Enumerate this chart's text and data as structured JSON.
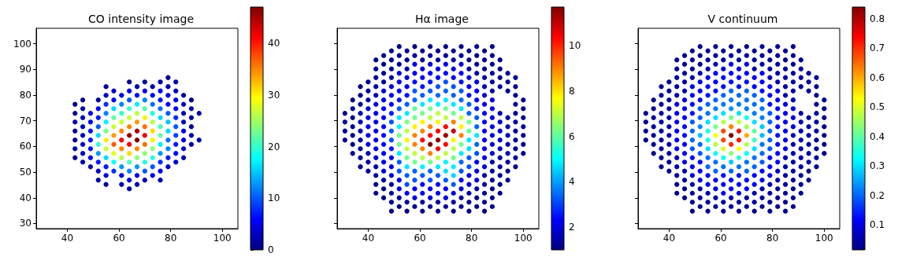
{
  "chart_data": [
    {
      "type": "scatter",
      "title": "CO intensity image",
      "marker": "circle",
      "xlim": [
        28,
        106
      ],
      "ylim": [
        28,
        106
      ],
      "xticks": [
        40,
        60,
        80,
        100
      ],
      "yticks": [
        30,
        40,
        50,
        60,
        70,
        80,
        90,
        100
      ],
      "clim": [
        0,
        47
      ],
      "cticks": [
        0,
        10,
        20,
        30,
        40
      ],
      "x": [
        43,
        43,
        43,
        43,
        43,
        43,
        43,
        46,
        46,
        46,
        46,
        46,
        46,
        46,
        46,
        49,
        49,
        49,
        49,
        49,
        49,
        49,
        52,
        52,
        52,
        52,
        52,
        52,
        52,
        52,
        52,
        52,
        55,
        55,
        55,
        55,
        55,
        55,
        55,
        55,
        55,
        55,
        55,
        55,
        58,
        58,
        58,
        58,
        58,
        58,
        58,
        58,
        58,
        58,
        61,
        61,
        61,
        61,
        61,
        61,
        61,
        61,
        61,
        61,
        61,
        64,
        64,
        64,
        64,
        64,
        64,
        64,
        64,
        64,
        64,
        64,
        64,
        64,
        67,
        67,
        67,
        67,
        67,
        67,
        67,
        67,
        67,
        67,
        67,
        67,
        70,
        70,
        70,
        70,
        70,
        70,
        70,
        70,
        70,
        70,
        70,
        70,
        73,
        73,
        73,
        73,
        73,
        73,
        73,
        73,
        73,
        73,
        73,
        76,
        76,
        76,
        76,
        76,
        76,
        76,
        76,
        76,
        76,
        76,
        76,
        79,
        79,
        79,
        79,
        79,
        79,
        79,
        79,
        79,
        79,
        79,
        82,
        82,
        82,
        82,
        82,
        82,
        82,
        82,
        82,
        82,
        85,
        85,
        85,
        85,
        85,
        85,
        85,
        85,
        88,
        88,
        88,
        88,
        88,
        88,
        91,
        91
      ],
      "values": [
        76.4,
        72.9,
        69.5,
        66.0,
        62.5,
        59.1,
        55.6,
        78.1,
        74.7,
        71.2,
        67.7,
        64.3,
        60.8,
        57.3,
        53.9,
        72.9,
        69.5,
        66.0,
        62.5,
        59.1,
        55.6,
        52.1,
        78.1,
        74.7,
        71.2,
        67.7,
        64.3,
        60.8,
        57.3,
        53.9,
        50.4,
        46.9,
        83.3,
        79.9,
        76.4,
        72.9,
        69.5,
        66.0,
        62.5,
        59.1,
        55.6,
        52.1,
        48.7,
        45.2,
        81.6,
        78.1,
        74.7,
        71.2,
        67.7,
        64.3,
        60.8,
        57.3,
        53.9,
        50.4,
        79.9,
        76.4,
        72.9,
        69.5,
        66.0,
        62.5,
        59.1,
        55.6,
        52.1,
        48.7,
        45.2,
        85.1,
        81.6,
        78.1,
        74.7,
        71.2,
        67.7,
        64.3,
        60.8,
        57.3,
        53.9,
        50.4,
        46.9,
        43.5,
        83.3,
        79.9,
        76.4,
        72.9,
        69.5,
        66.0,
        62.5,
        59.1,
        55.6,
        52.1,
        48.7,
        45.2,
        85.1,
        81.6,
        78.1,
        74.7,
        71.2,
        67.7,
        64.3,
        60.8,
        57.3,
        53.9,
        50.4,
        46.9,
        83.3,
        79.9,
        76.4,
        72.9,
        69.5,
        66.0,
        62.5,
        59.1,
        55.6,
        52.1,
        48.7,
        85.1,
        81.6,
        78.1,
        74.7,
        71.2,
        67.7,
        64.3,
        60.8,
        57.3,
        53.9,
        50.4,
        46.9,
        86.8,
        83.3,
        79.9,
        76.4,
        72.9,
        69.5,
        66.0,
        62.5,
        59.1,
        55.6,
        52.1,
        85.1,
        81.6,
        78.1,
        74.7,
        71.2,
        67.7,
        64.3,
        60.8,
        57.3,
        53.9,
        79.9,
        76.4,
        72.9,
        69.5,
        66.0,
        62.5,
        59.1,
        55.6,
        78.1,
        74.7,
        71.2,
        67.7,
        64.3,
        60.8,
        72.9,
        62.5
      ],
      "cvalues": [
        1,
        1,
        2,
        1,
        1,
        2,
        1,
        1,
        2,
        3,
        3,
        3,
        4,
        3,
        2,
        5,
        6,
        7,
        7,
        7,
        6,
        2,
        1,
        6,
        7,
        10,
        16,
        20,
        13,
        7,
        3,
        2,
        1,
        3,
        8,
        12,
        17,
        23,
        30,
        27,
        16,
        7,
        5,
        1,
        3,
        6,
        16,
        22,
        27,
        34,
        37,
        28,
        18,
        8,
        5,
        12,
        20,
        27,
        35,
        41,
        35,
        26,
        13,
        5,
        2,
        1,
        5,
        10,
        20,
        27,
        35,
        46,
        41,
        31,
        21,
        12,
        5,
        2,
        2,
        6,
        17,
        26,
        34,
        45,
        47,
        35,
        24,
        13,
        5,
        2,
        1,
        5,
        12,
        21,
        30,
        36,
        42,
        36,
        24,
        19,
        10,
        2,
        2,
        6,
        11,
        19,
        26,
        31,
        30,
        24,
        19,
        10,
        5,
        2,
        6,
        7,
        11,
        16,
        21,
        22,
        17,
        13,
        8,
        5,
        2,
        1,
        2,
        4,
        6,
        10,
        15,
        16,
        11,
        12,
        7,
        3,
        2,
        3,
        5,
        6,
        8,
        10,
        9,
        7,
        6,
        3,
        2,
        3,
        2,
        3,
        5,
        5,
        4,
        2,
        1,
        2,
        2,
        1,
        2,
        2,
        1,
        2
      ]
    },
    {
      "type": "scatter",
      "title": "Hα image",
      "marker": "circle",
      "tick_labels": "x",
      "xlim": [
        28,
        106
      ],
      "ylim": [
        28,
        106
      ],
      "xticks": [
        40,
        60,
        80,
        100
      ],
      "yticks": [
        {
          "value": 30,
          "label": null
        },
        {
          "value": 40,
          "label": null
        },
        {
          "value": 50,
          "label": null
        },
        {
          "value": 60,
          "label": null
        },
        {
          "value": 70,
          "label": null
        },
        {
          "value": 80,
          "label": null
        },
        {
          "value": 90,
          "label": null
        },
        {
          "value": 100,
          "label": null
        }
      ],
      "clim": [
        1.0,
        11.7
      ],
      "cticks": [
        2,
        4,
        6,
        8,
        10
      ],
      "x": [
        31,
        31,
        31,
        31,
        34,
        34,
        34,
        34,
        34,
        34,
        34,
        37,
        37,
        37,
        37,
        37,
        37,
        37,
        37,
        37,
        37,
        40,
        40,
        40,
        40,
        40,
        40,
        40,
        40,
        40,
        40,
        40,
        43,
        43,
        43,
        43,
        43,
        43,
        43,
        43,
        43,
        43,
        43,
        43,
        43,
        43,
        43,
        43,
        46,
        46,
        46,
        46,
        46,
        46,
        46,
        46,
        46,
        46,
        46,
        46,
        46,
        46,
        46,
        46,
        46,
        49,
        49,
        49,
        49,
        49,
        49,
        49,
        49,
        49,
        49,
        49,
        49,
        49,
        49,
        49,
        49,
        49,
        49,
        49,
        52,
        52,
        52,
        52,
        52,
        52,
        52,
        52,
        52,
        52,
        52,
        52,
        52,
        52,
        52,
        52,
        52,
        52,
        52,
        55,
        55,
        55,
        55,
        55,
        55,
        55,
        55,
        55,
        55,
        55,
        55,
        55,
        55,
        55,
        55,
        55,
        55,
        55,
        58,
        58,
        58,
        58,
        58,
        58,
        58,
        58,
        58,
        58,
        58,
        58,
        58,
        58,
        58,
        58,
        58,
        58,
        58,
        61,
        61,
        61,
        61,
        61,
        61,
        61,
        61,
        61,
        61,
        61,
        61,
        61,
        61,
        61,
        61,
        61,
        61,
        61,
        64,
        64,
        64,
        64,
        64,
        64,
        64,
        64,
        64,
        64,
        64,
        64,
        64,
        64,
        64,
        64,
        64,
        64,
        64,
        67,
        67,
        67,
        67,
        67,
        67,
        67,
        67,
        67,
        67,
        67,
        67,
        67,
        67,
        67,
        67,
        67,
        67,
        67,
        70,
        70,
        70,
        70,
        70,
        70,
        70,
        70,
        70,
        70,
        70,
        70,
        70,
        70,
        70,
        70,
        70,
        70,
        70,
        73,
        73,
        73,
        73,
        73,
        73,
        73,
        73,
        73,
        73,
        73,
        73,
        73,
        73,
        73,
        73,
        73,
        73,
        73,
        76,
        76,
        76,
        76,
        76,
        76,
        76,
        76,
        76,
        76,
        76,
        76,
        76,
        76,
        76,
        76,
        76,
        76,
        76,
        79,
        79,
        79,
        79,
        79,
        79,
        79,
        79,
        79,
        79,
        79,
        79,
        79,
        79,
        79,
        79,
        79,
        79,
        79,
        82,
        82,
        82,
        82,
        82,
        82,
        82,
        82,
        82,
        82,
        82,
        82,
        82,
        82,
        82,
        82,
        82,
        82,
        82,
        85,
        85,
        85,
        85,
        85,
        85,
        85,
        85,
        85,
        85,
        85,
        85,
        85,
        85,
        85,
        85,
        85,
        85,
        85,
        88,
        88,
        88,
        88,
        88,
        88,
        88,
        88,
        88,
        88,
        88,
        88,
        88,
        88,
        88,
        88,
        88,
        88,
        88,
        91,
        91,
        91,
        91,
        91,
        91,
        91,
        91,
        91,
        91,
        91,
        91,
        91,
        91,
        94,
        94,
        94,
        94,
        94,
        94,
        94,
        94,
        94,
        94,
        94,
        97,
        97,
        97,
        97,
        97,
        97,
        97,
        97,
        97,
        97,
        97,
        100,
        100,
        100,
        100,
        100,
        100,
        100
      ],
      "values": [
        72.9,
        69.5,
        66.0,
        62.5,
        78.1,
        74.7,
        71.2,
        67.7,
        64.3,
        60.8,
        57.3,
        83.3,
        79.9,
        76.4,
        72.9,
        69.5,
        66.0,
        62.5,
        59.1,
        55.6,
        52.1,
        85.1,
        81.6,
        78.1,
        74.7,
        71.2,
        67.7,
        64.3,
        60.8,
        57.3,
        53.9,
        50.4,
        93.7,
        90.2,
        86.8,
        83.3,
        79.9,
        76.4,
        72.9,
        69.5,
        66.0,
        62.5,
        59.1,
        55.6,
        52.1,
        48.7,
        45.2,
        41.8,
        95.4,
        92.0,
        88.5,
        85.1,
        81.6,
        78.1,
        74.7,
        71.2,
        67.7,
        64.3,
        60.8,
        57.3,
        53.9,
        50.4,
        46.9,
        43.5,
        40.0,
        97.2,
        93.7,
        90.2,
        86.8,
        83.3,
        79.9,
        76.4,
        72.9,
        69.5,
        66.0,
        62.5,
        59.1,
        55.6,
        52.1,
        48.7,
        45.2,
        41.8,
        38.3,
        34.8,
        98.9,
        95.4,
        92.0,
        88.5,
        85.1,
        81.6,
        78.1,
        74.7,
        71.2,
        67.7,
        64.3,
        60.8,
        57.3,
        53.9,
        50.4,
        46.9,
        43.5,
        40.0,
        36.6,
        97.2,
        93.7,
        90.2,
        86.8,
        83.3,
        79.9,
        76.4,
        72.9,
        69.5,
        66.0,
        62.5,
        59.1,
        55.6,
        52.1,
        48.7,
        45.2,
        41.8,
        38.3,
        34.8,
        98.9,
        95.4,
        92.0,
        88.5,
        85.1,
        81.6,
        78.1,
        74.7,
        71.2,
        67.7,
        64.3,
        60.8,
        57.3,
        53.9,
        50.4,
        46.9,
        43.5,
        40.0,
        36.6,
        97.2,
        93.7,
        90.2,
        86.8,
        83.3,
        79.9,
        76.4,
        72.9,
        69.5,
        66.0,
        62.5,
        59.1,
        55.6,
        52.1,
        48.7,
        45.2,
        41.8,
        38.3,
        34.8,
        98.9,
        95.4,
        92.0,
        88.5,
        85.1,
        81.6,
        78.1,
        74.7,
        71.2,
        67.7,
        64.3,
        60.8,
        57.3,
        53.9,
        50.4,
        46.9,
        43.5,
        40.0,
        36.6,
        97.2,
        93.7,
        90.2,
        86.8,
        83.3,
        79.9,
        76.4,
        72.9,
        69.5,
        66.0,
        62.5,
        59.1,
        55.6,
        52.1,
        48.7,
        45.2,
        41.8,
        38.3,
        34.8,
        98.9,
        95.4,
        92.0,
        88.5,
        85.1,
        81.6,
        78.1,
        74.7,
        71.2,
        67.7,
        64.3,
        60.8,
        57.3,
        53.9,
        50.4,
        46.9,
        43.5,
        40.0,
        36.6,
        97.2,
        93.7,
        90.2,
        86.8,
        83.3,
        79.9,
        76.4,
        72.9,
        69.5,
        66.0,
        62.5,
        59.1,
        55.6,
        52.1,
        48.7,
        45.2,
        41.8,
        38.3,
        34.8,
        98.9,
        95.4,
        92.0,
        88.5,
        85.1,
        81.6,
        78.1,
        74.7,
        71.2,
        67.7,
        64.3,
        60.8,
        57.3,
        53.9,
        50.4,
        46.9,
        43.5,
        40.0,
        36.6,
        97.2,
        93.7,
        90.2,
        86.8,
        83.3,
        79.9,
        76.4,
        72.9,
        69.5,
        66.0,
        62.5,
        59.1,
        55.6,
        52.1,
        48.7,
        45.2,
        41.8,
        38.3,
        34.8,
        98.9,
        95.4,
        92.0,
        88.5,
        85.1,
        81.6,
        78.1,
        74.7,
        71.2,
        67.7,
        64.3,
        60.8,
        57.3,
        53.9,
        50.4,
        46.9,
        43.5,
        40.0,
        36.6,
        97.2,
        93.7,
        90.2,
        86.8,
        83.3,
        79.9,
        76.4,
        72.9,
        69.5,
        66.0,
        62.5,
        59.1,
        55.6,
        52.1,
        48.7,
        45.2,
        41.8,
        38.3,
        34.8,
        98.9,
        95.4,
        92.0,
        88.5,
        85.1,
        81.6,
        78.1,
        74.7,
        71.2,
        67.7,
        64.3,
        60.8,
        57.3,
        53.9,
        50.4,
        46.9,
        43.5,
        40.0,
        36.6,
        93.7,
        90.2,
        86.8,
        83.3,
        72.9,
        69.5,
        66.0,
        62.5,
        59.1,
        55.6,
        52.1,
        48.7,
        45.2,
        41.8,
        88.5,
        85.1,
        81.6,
        71.2,
        67.7,
        64.3,
        60.8,
        57.3,
        53.9,
        50.4,
        46.9,
        86.8,
        83.3,
        79.9,
        76.4,
        72.9,
        69.5,
        66.0,
        62.5,
        59.1,
        55.6,
        52.1,
        78.1,
        74.7,
        71.2,
        67.7,
        64.3,
        60.8,
        57.3
      ],
      "cvalues": [
        1.1,
        1.2,
        1.2,
        1.1,
        1.1,
        1.2,
        1.2,
        1.3,
        1.2,
        1.2,
        1.1,
        1.1,
        1.2,
        1.3,
        1.4,
        1.6,
        1.6,
        1.4,
        1.3,
        1.2,
        1.1,
        1.2,
        1.3,
        1.4,
        2.0,
        2.1,
        2.2,
        2.1,
        2.0,
        1.4,
        1.3,
        1.2,
        1.1,
        1.2,
        1.3,
        1.4,
        1.5,
        2.0,
        2.1,
        2.2,
        2.2,
        2.2,
        2.1,
        2.0,
        1.5,
        1.4,
        1.2,
        1.1,
        1.1,
        1.2,
        1.3,
        1.4,
        2.0,
        2.2,
        2.3,
        2.4,
        2.5,
        2.5,
        2.4,
        2.3,
        2.2,
        2.0,
        1.4,
        1.2,
        1.1,
        1.1,
        1.2,
        1.3,
        1.4,
        2.0,
        2.2,
        2.4,
        2.6,
        3.2,
        3.3,
        3.2,
        2.6,
        2.4,
        2.2,
        2.0,
        1.4,
        1.3,
        1.2,
        1.1,
        1.1,
        1.2,
        1.3,
        2.0,
        2.2,
        2.4,
        2.6,
        3.3,
        4.8,
        4.9,
        6.2,
        6.2,
        4.8,
        3.3,
        3.2,
        2.2,
        2.0,
        1.3,
        1.1,
        1.1,
        1.2,
        1.4,
        2.1,
        2.3,
        2.5,
        3.3,
        4.8,
        6.3,
        7.0,
        7.8,
        7.0,
        6.2,
        4.8,
        3.3,
        3.2,
        2.2,
        1.3,
        1.1,
        1.1,
        1.3,
        2.0,
        2.2,
        2.5,
        3.3,
        3.4,
        6.0,
        6.2,
        7.8,
        9.0,
        9.0,
        7.0,
        6.2,
        3.4,
        3.2,
        2.2,
        2.0,
        1.2,
        1.1,
        1.3,
        2.0,
        2.3,
        2.6,
        3.3,
        4.8,
        6.2,
        7.8,
        9.0,
        10.3,
        9.0,
        7.0,
        4.9,
        3.3,
        2.4,
        2.1,
        1.3,
        1.1,
        1.1,
        1.3,
        2.0,
        2.3,
        2.6,
        3.3,
        4.8,
        6.2,
        7.0,
        9.0,
        10.3,
        11.7,
        9.0,
        6.2,
        3.4,
        3.2,
        2.2,
        2.0,
        1.2,
        1.1,
        1.3,
        2.1,
        2.4,
        3.2,
        3.4,
        4.9,
        7.0,
        7.8,
        10.3,
        11.5,
        10.3,
        7.0,
        4.8,
        3.3,
        2.4,
        2.1,
        1.3,
        1.1,
        1.2,
        1.3,
        2.1,
        2.4,
        3.2,
        3.4,
        4.8,
        6.2,
        7.0,
        10.3,
        11.4,
        10.3,
        7.0,
        4.9,
        4.7,
        3.3,
        2.3,
        2.0,
        1.2,
        1.1,
        1.3,
        2.0,
        2.3,
        3.2,
        3.3,
        4.8,
        6.2,
        9.0,
        11.0,
        7.8,
        7.0,
        6.2,
        4.8,
        4.6,
        3.3,
        2.1,
        1.3,
        1.1,
        1.2,
        1.3,
        2.0,
        2.3,
        2.5,
        3.3,
        3.4,
        4.8,
        7.0,
        7.8,
        9.0,
        6.2,
        4.8,
        3.4,
        3.2,
        2.3,
        2.0,
        1.3,
        1.2,
        1.1,
        1.2,
        1.4,
        2.1,
        2.3,
        2.5,
        3.3,
        3.4,
        6.2,
        6.1,
        4.8,
        4.7,
        3.3,
        3.2,
        2.2,
        2.0,
        1.4,
        1.2,
        1.1,
        1.1,
        1.2,
        1.3,
        1.4,
        2.1,
        2.3,
        2.4,
        2.6,
        3.3,
        3.4,
        4.8,
        3.4,
        3.2,
        2.4,
        2.2,
        2.0,
        1.3,
        1.2,
        1.1,
        1.1,
        1.2,
        1.3,
        1.4,
        1.5,
        2.0,
        2.2,
        2.3,
        2.4,
        2.4,
        2.3,
        2.2,
        2.1,
        2.0,
        1.5,
        1.4,
        1.3,
        1.2,
        1.1,
        1.1,
        1.2,
        1.3,
        1.4,
        1.4,
        1.5,
        2.0,
        2.1,
        2.2,
        2.2,
        2.1,
        2.0,
        1.9,
        1.5,
        1.4,
        1.3,
        1.2,
        1.2,
        1.1,
        1.1,
        1.2,
        1.3,
        1.4,
        1.5,
        1.9,
        2.0,
        2.0,
        1.9,
        1.5,
        1.4,
        1.3,
        1.2,
        1.1,
        1.1,
        1.2,
        1.3,
        1.4,
        1.4,
        1.5,
        1.4,
        1.4,
        1.3,
        1.2,
        1.1,
        1.1,
        1.2,
        1.2,
        1.3,
        1.3,
        1.3,
        1.3,
        1.3,
        1.2,
        1.2,
        1.1,
        1.1,
        1.1,
        1.2,
        1.2,
        1.2,
        1.1,
        1.1
      ]
    },
    {
      "type": "scatter",
      "title": "V continuum",
      "marker": "circle",
      "tick_labels": "x",
      "xlim": [
        28,
        106
      ],
      "ylim": [
        28,
        106
      ],
      "xticks": [
        40,
        60,
        80,
        100
      ],
      "yticks": [
        {
          "value": 30,
          "label": null
        },
        {
          "value": 40,
          "label": null
        },
        {
          "value": 50,
          "label": null
        },
        {
          "value": 60,
          "label": null
        },
        {
          "value": 70,
          "label": null
        },
        {
          "value": 80,
          "label": null
        },
        {
          "value": 90,
          "label": null
        },
        {
          "value": 100,
          "label": null
        }
      ],
      "clim": [
        0.015,
        0.84
      ],
      "cticks": [
        0.1,
        0.2,
        0.3,
        0.4,
        0.5,
        0.6,
        0.7,
        0.8
      ],
      "x": [
        31,
        31,
        31,
        31,
        34,
        34,
        34,
        34,
        34,
        34,
        34,
        37,
        37,
        37,
        37,
        37,
        37,
        37,
        37,
        37,
        37,
        40,
        40,
        40,
        40,
        40,
        40,
        40,
        40,
        40,
        40,
        40,
        43,
        43,
        43,
        43,
        43,
        43,
        43,
        43,
        43,
        43,
        43,
        43,
        43,
        43,
        43,
        43,
        46,
        46,
        46,
        46,
        46,
        46,
        46,
        46,
        46,
        46,
        46,
        46,
        46,
        46,
        46,
        46,
        46,
        49,
        49,
        49,
        49,
        49,
        49,
        49,
        49,
        49,
        49,
        49,
        49,
        49,
        49,
        49,
        49,
        49,
        49,
        49,
        52,
        52,
        52,
        52,
        52,
        52,
        52,
        52,
        52,
        52,
        52,
        52,
        52,
        52,
        52,
        52,
        52,
        52,
        52,
        55,
        55,
        55,
        55,
        55,
        55,
        55,
        55,
        55,
        55,
        55,
        55,
        55,
        55,
        55,
        55,
        55,
        55,
        55,
        58,
        58,
        58,
        58,
        58,
        58,
        58,
        58,
        58,
        58,
        58,
        58,
        58,
        58,
        58,
        58,
        58,
        58,
        58,
        61,
        61,
        61,
        61,
        61,
        61,
        61,
        61,
        61,
        61,
        61,
        61,
        61,
        61,
        61,
        61,
        61,
        61,
        61,
        64,
        64,
        64,
        64,
        64,
        64,
        64,
        64,
        64,
        64,
        64,
        64,
        64,
        64,
        64,
        64,
        64,
        64,
        64,
        67,
        67,
        67,
        67,
        67,
        67,
        67,
        67,
        67,
        67,
        67,
        67,
        67,
        67,
        67,
        67,
        67,
        67,
        67,
        70,
        70,
        70,
        70,
        70,
        70,
        70,
        70,
        70,
        70,
        70,
        70,
        70,
        70,
        70,
        70,
        70,
        70,
        70,
        73,
        73,
        73,
        73,
        73,
        73,
        73,
        73,
        73,
        73,
        73,
        73,
        73,
        73,
        73,
        73,
        73,
        73,
        73,
        76,
        76,
        76,
        76,
        76,
        76,
        76,
        76,
        76,
        76,
        76,
        76,
        76,
        76,
        76,
        76,
        76,
        76,
        76,
        79,
        79,
        79,
        79,
        79,
        79,
        79,
        79,
        79,
        79,
        79,
        79,
        79,
        79,
        79,
        79,
        79,
        79,
        79,
        82,
        82,
        82,
        82,
        82,
        82,
        82,
        82,
        82,
        82,
        82,
        82,
        82,
        82,
        82,
        82,
        82,
        82,
        82,
        85,
        85,
        85,
        85,
        85,
        85,
        85,
        85,
        85,
        85,
        85,
        85,
        85,
        85,
        85,
        85,
        85,
        85,
        85,
        88,
        88,
        88,
        88,
        88,
        88,
        88,
        88,
        88,
        88,
        88,
        88,
        88,
        88,
        88,
        88,
        88,
        88,
        88,
        91,
        91,
        91,
        91,
        91,
        91,
        91,
        91,
        91,
        91,
        91,
        91,
        91,
        91,
        94,
        94,
        94,
        94,
        94,
        94,
        94,
        94,
        94,
        94,
        94,
        97,
        97,
        97,
        97,
        97,
        97,
        97,
        97,
        97,
        97,
        97,
        100,
        100,
        100,
        100,
        100,
        100,
        100
      ],
      "values": [
        72.9,
        69.5,
        66.0,
        62.5,
        78.1,
        74.7,
        71.2,
        67.7,
        64.3,
        60.8,
        57.3,
        83.3,
        79.9,
        76.4,
        72.9,
        69.5,
        66.0,
        62.5,
        59.1,
        55.6,
        52.1,
        85.1,
        81.6,
        78.1,
        74.7,
        71.2,
        67.7,
        64.3,
        60.8,
        57.3,
        53.9,
        50.4,
        93.7,
        90.2,
        86.8,
        83.3,
        79.9,
        76.4,
        72.9,
        69.5,
        66.0,
        62.5,
        59.1,
        55.6,
        52.1,
        48.7,
        45.2,
        41.8,
        95.4,
        92.0,
        88.5,
        85.1,
        81.6,
        78.1,
        74.7,
        71.2,
        67.7,
        64.3,
        60.8,
        57.3,
        53.9,
        50.4,
        46.9,
        43.5,
        40.0,
        97.2,
        93.7,
        90.2,
        86.8,
        83.3,
        79.9,
        76.4,
        72.9,
        69.5,
        66.0,
        62.5,
        59.1,
        55.6,
        52.1,
        48.7,
        45.2,
        41.8,
        38.3,
        34.8,
        98.9,
        95.4,
        92.0,
        88.5,
        85.1,
        81.6,
        78.1,
        74.7,
        71.2,
        67.7,
        64.3,
        60.8,
        57.3,
        53.9,
        50.4,
        46.9,
        43.5,
        40.0,
        36.6,
        97.2,
        93.7,
        90.2,
        86.8,
        83.3,
        79.9,
        76.4,
        72.9,
        69.5,
        66.0,
        62.5,
        59.1,
        55.6,
        52.1,
        48.7,
        45.2,
        41.8,
        38.3,
        34.8,
        98.9,
        95.4,
        92.0,
        88.5,
        85.1,
        81.6,
        78.1,
        74.7,
        71.2,
        67.7,
        64.3,
        60.8,
        57.3,
        53.9,
        50.4,
        46.9,
        43.5,
        40.0,
        36.6,
        97.2,
        93.7,
        90.2,
        86.8,
        83.3,
        79.9,
        76.4,
        72.9,
        69.5,
        66.0,
        62.5,
        59.1,
        55.6,
        52.1,
        48.7,
        45.2,
        41.8,
        38.3,
        34.8,
        98.9,
        95.4,
        92.0,
        88.5,
        85.1,
        81.6,
        78.1,
        74.7,
        71.2,
        67.7,
        64.3,
        60.8,
        57.3,
        53.9,
        50.4,
        46.9,
        43.5,
        40.0,
        36.6,
        97.2,
        93.7,
        90.2,
        86.8,
        83.3,
        79.9,
        76.4,
        72.9,
        69.5,
        66.0,
        62.5,
        59.1,
        55.6,
        52.1,
        48.7,
        45.2,
        41.8,
        38.3,
        34.8,
        98.9,
        95.4,
        92.0,
        88.5,
        85.1,
        81.6,
        78.1,
        74.7,
        71.2,
        67.7,
        64.3,
        60.8,
        57.3,
        53.9,
        50.4,
        46.9,
        43.5,
        40.0,
        36.6,
        97.2,
        93.7,
        90.2,
        86.8,
        83.3,
        79.9,
        76.4,
        72.9,
        69.5,
        66.0,
        62.5,
        59.1,
        55.6,
        52.1,
        48.7,
        45.2,
        41.8,
        38.3,
        34.8,
        98.9,
        95.4,
        92.0,
        88.5,
        85.1,
        81.6,
        78.1,
        74.7,
        71.2,
        67.7,
        64.3,
        60.8,
        57.3,
        53.9,
        50.4,
        46.9,
        43.5,
        40.0,
        36.6,
        97.2,
        93.7,
        90.2,
        86.8,
        83.3,
        79.9,
        76.4,
        72.9,
        69.5,
        66.0,
        62.5,
        59.1,
        55.6,
        52.1,
        48.7,
        45.2,
        41.8,
        38.3,
        34.8,
        98.9,
        95.4,
        92.0,
        88.5,
        85.1,
        81.6,
        78.1,
        74.7,
        71.2,
        67.7,
        64.3,
        60.8,
        57.3,
        53.9,
        50.4,
        46.9,
        43.5,
        40.0,
        36.6,
        97.2,
        93.7,
        90.2,
        86.8,
        83.3,
        79.9,
        76.4,
        72.9,
        69.5,
        66.0,
        62.5,
        59.1,
        55.6,
        52.1,
        48.7,
        45.2,
        41.8,
        38.3,
        34.8,
        98.9,
        95.4,
        92.0,
        88.5,
        85.1,
        81.6,
        78.1,
        74.7,
        71.2,
        67.7,
        64.3,
        60.8,
        57.3,
        53.9,
        50.4,
        46.9,
        43.5,
        40.0,
        36.6,
        93.7,
        90.2,
        86.8,
        83.3,
        72.9,
        69.5,
        66.0,
        62.5,
        59.1,
        55.6,
        52.1,
        48.7,
        45.2,
        41.8,
        88.5,
        85.1,
        81.6,
        71.2,
        67.7,
        64.3,
        60.8,
        57.3,
        53.9,
        50.4,
        46.9,
        86.8,
        83.3,
        79.9,
        76.4,
        72.9,
        69.5,
        66.0,
        62.5,
        59.1,
        55.6,
        52.1,
        78.1,
        74.7,
        71.2,
        67.7,
        64.3,
        60.8,
        57.3
      ],
      "cvalues": [
        0.03,
        0.03,
        0.03,
        0.03,
        0.03,
        0.03,
        0.04,
        0.04,
        0.04,
        0.03,
        0.03,
        0.03,
        0.03,
        0.04,
        0.04,
        0.05,
        0.05,
        0.04,
        0.04,
        0.03,
        0.03,
        0.03,
        0.03,
        0.04,
        0.05,
        0.06,
        0.06,
        0.06,
        0.05,
        0.04,
        0.03,
        0.03,
        0.03,
        0.03,
        0.04,
        0.04,
        0.05,
        0.1,
        0.11,
        0.11,
        0.11,
        0.11,
        0.1,
        0.06,
        0.05,
        0.04,
        0.03,
        0.03,
        0.03,
        0.03,
        0.04,
        0.04,
        0.06,
        0.1,
        0.11,
        0.12,
        0.13,
        0.13,
        0.12,
        0.11,
        0.1,
        0.06,
        0.04,
        0.03,
        0.03,
        0.03,
        0.03,
        0.04,
        0.05,
        0.1,
        0.11,
        0.12,
        0.13,
        0.19,
        0.2,
        0.2,
        0.19,
        0.13,
        0.11,
        0.1,
        0.05,
        0.04,
        0.03,
        0.03,
        0.03,
        0.03,
        0.04,
        0.06,
        0.1,
        0.12,
        0.13,
        0.19,
        0.2,
        0.23,
        0.27,
        0.2,
        0.19,
        0.13,
        0.12,
        0.1,
        0.05,
        0.04,
        0.03,
        0.03,
        0.04,
        0.05,
        0.1,
        0.12,
        0.13,
        0.2,
        0.21,
        0.3,
        0.35,
        0.35,
        0.3,
        0.21,
        0.2,
        0.12,
        0.11,
        0.05,
        0.04,
        0.03,
        0.03,
        0.04,
        0.06,
        0.11,
        0.12,
        0.13,
        0.2,
        0.22,
        0.3,
        0.42,
        0.53,
        0.47,
        0.34,
        0.21,
        0.2,
        0.12,
        0.1,
        0.04,
        0.03,
        0.03,
        0.04,
        0.1,
        0.12,
        0.13,
        0.2,
        0.22,
        0.3,
        0.47,
        0.68,
        0.68,
        0.5,
        0.34,
        0.21,
        0.13,
        0.12,
        0.1,
        0.04,
        0.03,
        0.03,
        0.04,
        0.1,
        0.12,
        0.13,
        0.2,
        0.22,
        0.24,
        0.42,
        0.63,
        0.84,
        0.7,
        0.44,
        0.28,
        0.2,
        0.12,
        0.11,
        0.05,
        0.03,
        0.03,
        0.04,
        0.1,
        0.12,
        0.13,
        0.2,
        0.22,
        0.3,
        0.48,
        0.72,
        0.72,
        0.53,
        0.35,
        0.21,
        0.13,
        0.12,
        0.1,
        0.04,
        0.03,
        0.03,
        0.04,
        0.1,
        0.12,
        0.13,
        0.2,
        0.21,
        0.22,
        0.34,
        0.46,
        0.6,
        0.47,
        0.33,
        0.21,
        0.2,
        0.12,
        0.11,
        0.04,
        0.03,
        0.03,
        0.04,
        0.05,
        0.11,
        0.12,
        0.2,
        0.21,
        0.22,
        0.3,
        0.4,
        0.38,
        0.3,
        0.21,
        0.2,
        0.12,
        0.11,
        0.05,
        0.04,
        0.03,
        0.03,
        0.04,
        0.05,
        0.11,
        0.12,
        0.13,
        0.2,
        0.21,
        0.22,
        0.28,
        0.27,
        0.21,
        0.2,
        0.19,
        0.12,
        0.11,
        0.05,
        0.04,
        0.03,
        0.03,
        0.04,
        0.05,
        0.06,
        0.11,
        0.12,
        0.13,
        0.19,
        0.2,
        0.2,
        0.2,
        0.19,
        0.13,
        0.12,
        0.11,
        0.06,
        0.04,
        0.03,
        0.03,
        0.03,
        0.04,
        0.05,
        0.05,
        0.06,
        0.1,
        0.11,
        0.12,
        0.12,
        0.13,
        0.13,
        0.12,
        0.11,
        0.11,
        0.06,
        0.05,
        0.04,
        0.03,
        0.03,
        0.03,
        0.03,
        0.04,
        0.05,
        0.05,
        0.06,
        0.1,
        0.11,
        0.11,
        0.11,
        0.11,
        0.1,
        0.06,
        0.05,
        0.05,
        0.04,
        0.04,
        0.03,
        0.03,
        0.03,
        0.03,
        0.04,
        0.04,
        0.05,
        0.05,
        0.06,
        0.1,
        0.1,
        0.1,
        0.06,
        0.06,
        0.05,
        0.05,
        0.04,
        0.04,
        0.03,
        0.03,
        0.03,
        0.03,
        0.03,
        0.04,
        0.04,
        0.05,
        0.06,
        0.06,
        0.06,
        0.05,
        0.05,
        0.04,
        0.04,
        0.03,
        0.03,
        0.03,
        0.03,
        0.04,
        0.04,
        0.05,
        0.05,
        0.04,
        0.04,
        0.04,
        0.03,
        0.03,
        0.03,
        0.03,
        0.03,
        0.04,
        0.04,
        0.04,
        0.04,
        0.03,
        0.03,
        0.03,
        0.03,
        0.03,
        0.03,
        0.03,
        0.03,
        0.03,
        0.03,
        0.03
      ]
    }
  ]
}
